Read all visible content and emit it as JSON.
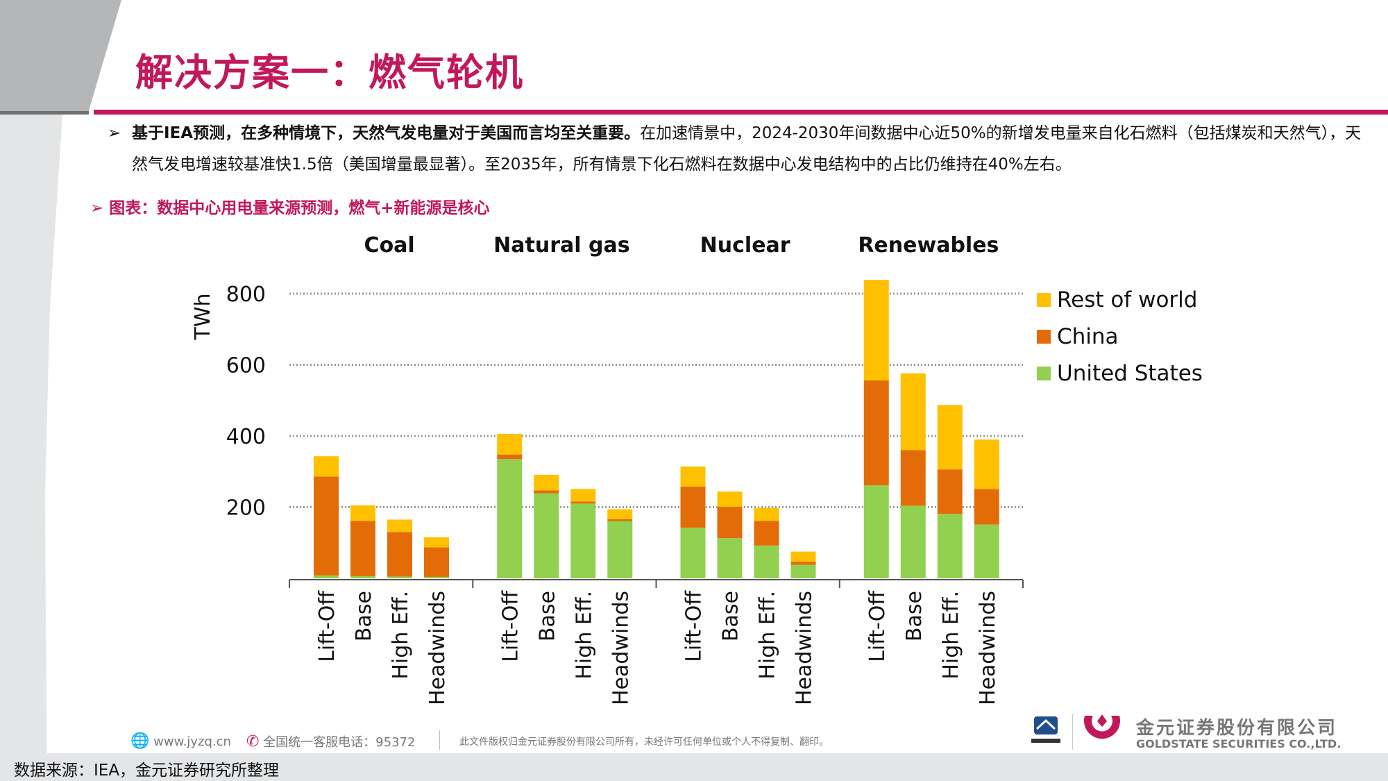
{
  "title": "解决方案一：燃气轮机",
  "paragraph": {
    "bold": "基于IEA预测，在多种情境下，天然气发电量对于美国而言均至关重要。",
    "normal": "在加速情景中，2024-2030年间数据中心近50%的新增发电量来自化石燃料（包括煤炭和天然气），天然气发电增速较基准快1.5倍（美国增量最显著）。至2035年，所有情景下化石燃料在数据中心发电结构中的占比仍维持在40%左右。"
  },
  "caption": "图表：数据中心用电量来源预测，燃气+新能源是核心",
  "chart_data": {
    "type": "bar",
    "stacked": true,
    "ylabel": "TWh",
    "ylim": [
      0,
      800
    ],
    "yticks": [
      200,
      400,
      600,
      800
    ],
    "grid": "dotted horizontal",
    "legend_position": "right",
    "groups": [
      "Coal",
      "Natural gas",
      "Nuclear",
      "Renewables"
    ],
    "categories": [
      "Lift-Off",
      "Base",
      "High Eff.",
      "Headwinds"
    ],
    "series": [
      {
        "name": "United States",
        "color": "#92d050",
        "values": [
          [
            8,
            6,
            5,
            4
          ],
          [
            335,
            239,
            210,
            161
          ],
          [
            142,
            113,
            92,
            38
          ],
          [
            261,
            204,
            181,
            151
          ]
        ]
      },
      {
        "name": "China",
        "color": "#e36c09",
        "values": [
          [
            278,
            155,
            125,
            83
          ],
          [
            13,
            8,
            6,
            5
          ],
          [
            116,
            88,
            69,
            9
          ],
          [
            295,
            156,
            125,
            100
          ]
        ]
      },
      {
        "name": "Rest of world",
        "color": "#ffc000",
        "values": [
          [
            57,
            44,
            35,
            28
          ],
          [
            58,
            44,
            35,
            28
          ],
          [
            56,
            43,
            37,
            28
          ],
          [
            283,
            216,
            181,
            139
          ]
        ]
      }
    ],
    "legend_order": [
      "Rest of world",
      "China",
      "United States"
    ]
  },
  "footer": {
    "website": "www.jyzq.cn",
    "hotline": "全国统一客服电话：95372",
    "disclaimer": "此文件版权归金元证券股份有限公司所有，未经许可任何单位或个人不得复制、翻印。",
    "company_cn": "金元证券股份有限公司",
    "company_en": "GOLDSTATE SECURITIES CO.,LTD."
  },
  "source": "数据来源：IEA，金元证券研究所整理",
  "colors": {
    "accent": "#c2185b"
  }
}
